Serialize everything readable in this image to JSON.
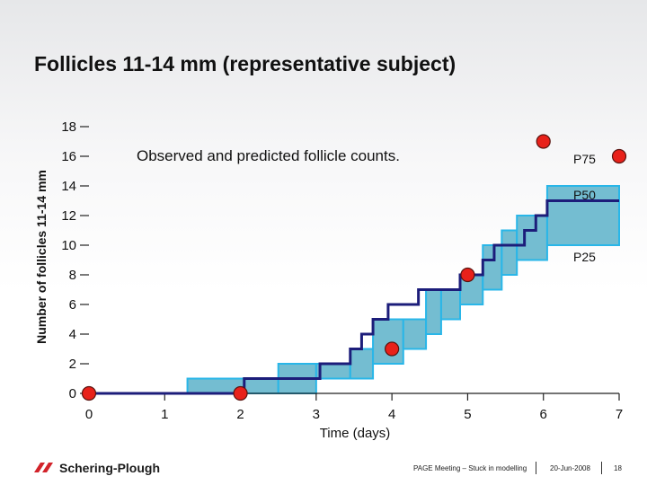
{
  "title": "Follicles 11-14 mm (representative subject)",
  "chart_data": {
    "type": "line",
    "annotation": "Observed and predicted follicle counts.",
    "xlabel": "Time (days)",
    "ylabel": "Number of follicles 11-14 mm",
    "xlim": [
      0,
      7
    ],
    "ylim": [
      0,
      18
    ],
    "x_ticks": [
      0,
      1,
      2,
      3,
      4,
      5,
      6,
      7
    ],
    "y_ticks": [
      0,
      2,
      4,
      6,
      8,
      10,
      12,
      14,
      16,
      18
    ],
    "band_steps": [
      {
        "x0": 0,
        "x1": 1.3,
        "lo": 0,
        "hi": 0
      },
      {
        "x0": 1.3,
        "x1": 2.05,
        "lo": 0,
        "hi": 1
      },
      {
        "x0": 2.05,
        "x1": 2.5,
        "lo": 0,
        "hi": 1
      },
      {
        "x0": 2.5,
        "x1": 3.0,
        "lo": 0,
        "hi": 2
      },
      {
        "x0": 3.0,
        "x1": 3.45,
        "lo": 1,
        "hi": 2
      },
      {
        "x0": 3.45,
        "x1": 3.75,
        "lo": 1,
        "hi": 3
      },
      {
        "x0": 3.75,
        "x1": 4.15,
        "lo": 2,
        "hi": 5
      },
      {
        "x0": 4.15,
        "x1": 4.45,
        "lo": 3,
        "hi": 5
      },
      {
        "x0": 4.45,
        "x1": 4.65,
        "lo": 4,
        "hi": 7
      },
      {
        "x0": 4.65,
        "x1": 4.9,
        "lo": 5,
        "hi": 7
      },
      {
        "x0": 4.9,
        "x1": 5.2,
        "lo": 6,
        "hi": 8
      },
      {
        "x0": 5.2,
        "x1": 5.45,
        "lo": 7,
        "hi": 10
      },
      {
        "x0": 5.45,
        "x1": 5.65,
        "lo": 8,
        "hi": 11
      },
      {
        "x0": 5.65,
        "x1": 6.05,
        "lo": 9,
        "hi": 12
      },
      {
        "x0": 6.05,
        "x1": 7.0,
        "lo": 10,
        "hi": 14
      }
    ],
    "series": [
      {
        "name": "P50",
        "x": [
          0,
          2.05,
          2.05,
          2.75,
          2.75,
          3.05,
          3.05,
          3.45,
          3.45,
          3.6,
          3.6,
          3.75,
          3.75,
          3.95,
          3.95,
          4.15,
          4.15,
          4.35,
          4.35,
          4.6,
          4.6,
          4.9,
          4.9,
          5.05,
          5.05,
          5.2,
          5.2,
          5.35,
          5.35,
          5.55,
          5.55,
          5.75,
          5.75,
          5.9,
          5.9,
          6.05,
          6.05,
          7.0
        ],
        "y": [
          0,
          0,
          1,
          1,
          1,
          1,
          2,
          2,
          3,
          3,
          4,
          4,
          5,
          5,
          6,
          6,
          6,
          6,
          7,
          7,
          7,
          7,
          8,
          8,
          8,
          8,
          9,
          9,
          10,
          10,
          10,
          10,
          11,
          11,
          12,
          12,
          13,
          13
        ]
      }
    ],
    "observed": {
      "x": [
        0,
        2.0,
        4.0,
        5.0,
        6.0,
        7.0
      ],
      "y": [
        0,
        0,
        3,
        8,
        17,
        16
      ]
    },
    "percentile_labels": [
      "P75",
      "P50",
      "P25"
    ]
  },
  "footer": {
    "logo_text": "Schering-Plough",
    "meeting": "PAGE Meeting – Stuck in modelling",
    "date": "20-Jun-2008",
    "page": "18"
  },
  "colors": {
    "band_fill": "#74bdd1",
    "band_edge": "#29b6e8",
    "median_line": "#1c1d7a",
    "observed_point": "#e8211a",
    "axis": "#222222",
    "logo_red": "#d2232a"
  }
}
